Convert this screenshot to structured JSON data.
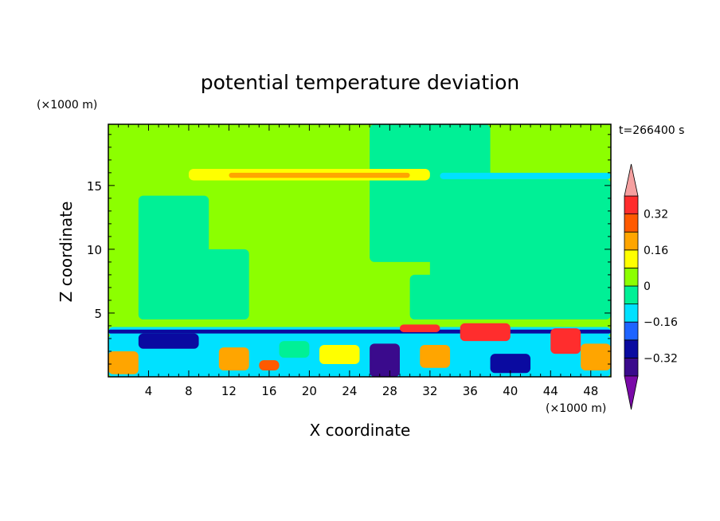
{
  "chart_data": {
    "type": "heatmap",
    "title": "potential temperature deviation",
    "time_label": "t=266400 s",
    "xlabel": "X coordinate",
    "ylabel": "Z coordinate",
    "x_unit": "(×1000 m)",
    "y_unit": "(×1000 m)",
    "xlim": [
      0,
      50
    ],
    "ylim": [
      0,
      19.8
    ],
    "x_ticks": [
      4,
      8,
      12,
      16,
      20,
      24,
      28,
      32,
      36,
      40,
      44,
      48
    ],
    "y_ticks": [
      5,
      10,
      15
    ],
    "colorbar": {
      "levels": [
        -0.4,
        -0.32,
        -0.24,
        -0.16,
        -0.08,
        0,
        0.08,
        0.16,
        0.24,
        0.32,
        0.4
      ],
      "tick_values": [
        0.32,
        0.16,
        0,
        -0.16,
        -0.32
      ],
      "tick_labels": [
        "0.32",
        "0.16",
        "0",
        "−0.16",
        "−0.32"
      ],
      "colors": [
        "#7a0aa8",
        "#3a0a8c",
        "#0a0aa0",
        "#1e64ff",
        "#00e1ff",
        "#00f096",
        "#8cff00",
        "#ffff00",
        "#ffa500",
        "#ff5a00",
        "#ff2d2d",
        "#f5a0a0"
      ]
    },
    "background_value": 0.02,
    "regions": [
      {
        "x": [
          0,
          50
        ],
        "z": [
          0,
          19.8
        ],
        "value": 0.04
      },
      {
        "x": [
          3,
          10
        ],
        "z": [
          4.5,
          14.2
        ],
        "value": -0.04
      },
      {
        "x": [
          9,
          14
        ],
        "z": [
          4.5,
          10
        ],
        "value": -0.04
      },
      {
        "x": [
          26,
          38
        ],
        "z": [
          9,
          19.8
        ],
        "value": -0.04
      },
      {
        "x": [
          30,
          34
        ],
        "z": [
          4.5,
          8
        ],
        "value": -0.04
      },
      {
        "x": [
          32,
          50
        ],
        "z": [
          4.5,
          15.5
        ],
        "value": -0.04
      },
      {
        "x": [
          0,
          5
        ],
        "z": [
          16.5,
          19.8
        ],
        "value": 0.04
      },
      {
        "x": [
          8,
          32
        ],
        "z": [
          15.4,
          16.3
        ],
        "value": 0.1
      },
      {
        "x": [
          12,
          30
        ],
        "z": [
          15.6,
          16.0
        ],
        "value": 0.2
      },
      {
        "x": [
          33,
          50
        ],
        "z": [
          15.5,
          16.0
        ],
        "value": -0.12
      },
      {
        "x": [
          0,
          50
        ],
        "z": [
          3.2,
          3.9
        ],
        "value": -0.12
      },
      {
        "x": [
          0,
          50
        ],
        "z": [
          3.4,
          3.7
        ],
        "value": -0.28
      },
      {
        "x": [
          0,
          50
        ],
        "z": [
          0,
          3.3
        ],
        "value": -0.1
      },
      {
        "x": [
          0,
          3
        ],
        "z": [
          0.2,
          2
        ],
        "value": 0.2
      },
      {
        "x": [
          3,
          9
        ],
        "z": [
          2.2,
          3.4
        ],
        "value": -0.3
      },
      {
        "x": [
          11,
          14
        ],
        "z": [
          0.5,
          2.3
        ],
        "value": 0.2
      },
      {
        "x": [
          15,
          17
        ],
        "z": [
          0.5,
          1.3
        ],
        "value": 0.3
      },
      {
        "x": [
          17,
          20
        ],
        "z": [
          1.5,
          2.8
        ],
        "value": -0.06
      },
      {
        "x": [
          21,
          25
        ],
        "z": [
          1.0,
          2.5
        ],
        "value": 0.12
      },
      {
        "x": [
          26,
          29
        ],
        "z": [
          0,
          2.6
        ],
        "value": -0.36
      },
      {
        "x": [
          29,
          33
        ],
        "z": [
          3.5,
          4.1
        ],
        "value": 0.36
      },
      {
        "x": [
          31,
          34
        ],
        "z": [
          0.7,
          2.5
        ],
        "value": 0.2
      },
      {
        "x": [
          35,
          40
        ],
        "z": [
          2.8,
          4.2
        ],
        "value": 0.36
      },
      {
        "x": [
          38,
          42
        ],
        "z": [
          0.3,
          1.8
        ],
        "value": -0.3
      },
      {
        "x": [
          44,
          47
        ],
        "z": [
          1.8,
          3.8
        ],
        "value": 0.36
      },
      {
        "x": [
          47,
          50
        ],
        "z": [
          0.5,
          2.6
        ],
        "value": 0.2
      }
    ]
  }
}
